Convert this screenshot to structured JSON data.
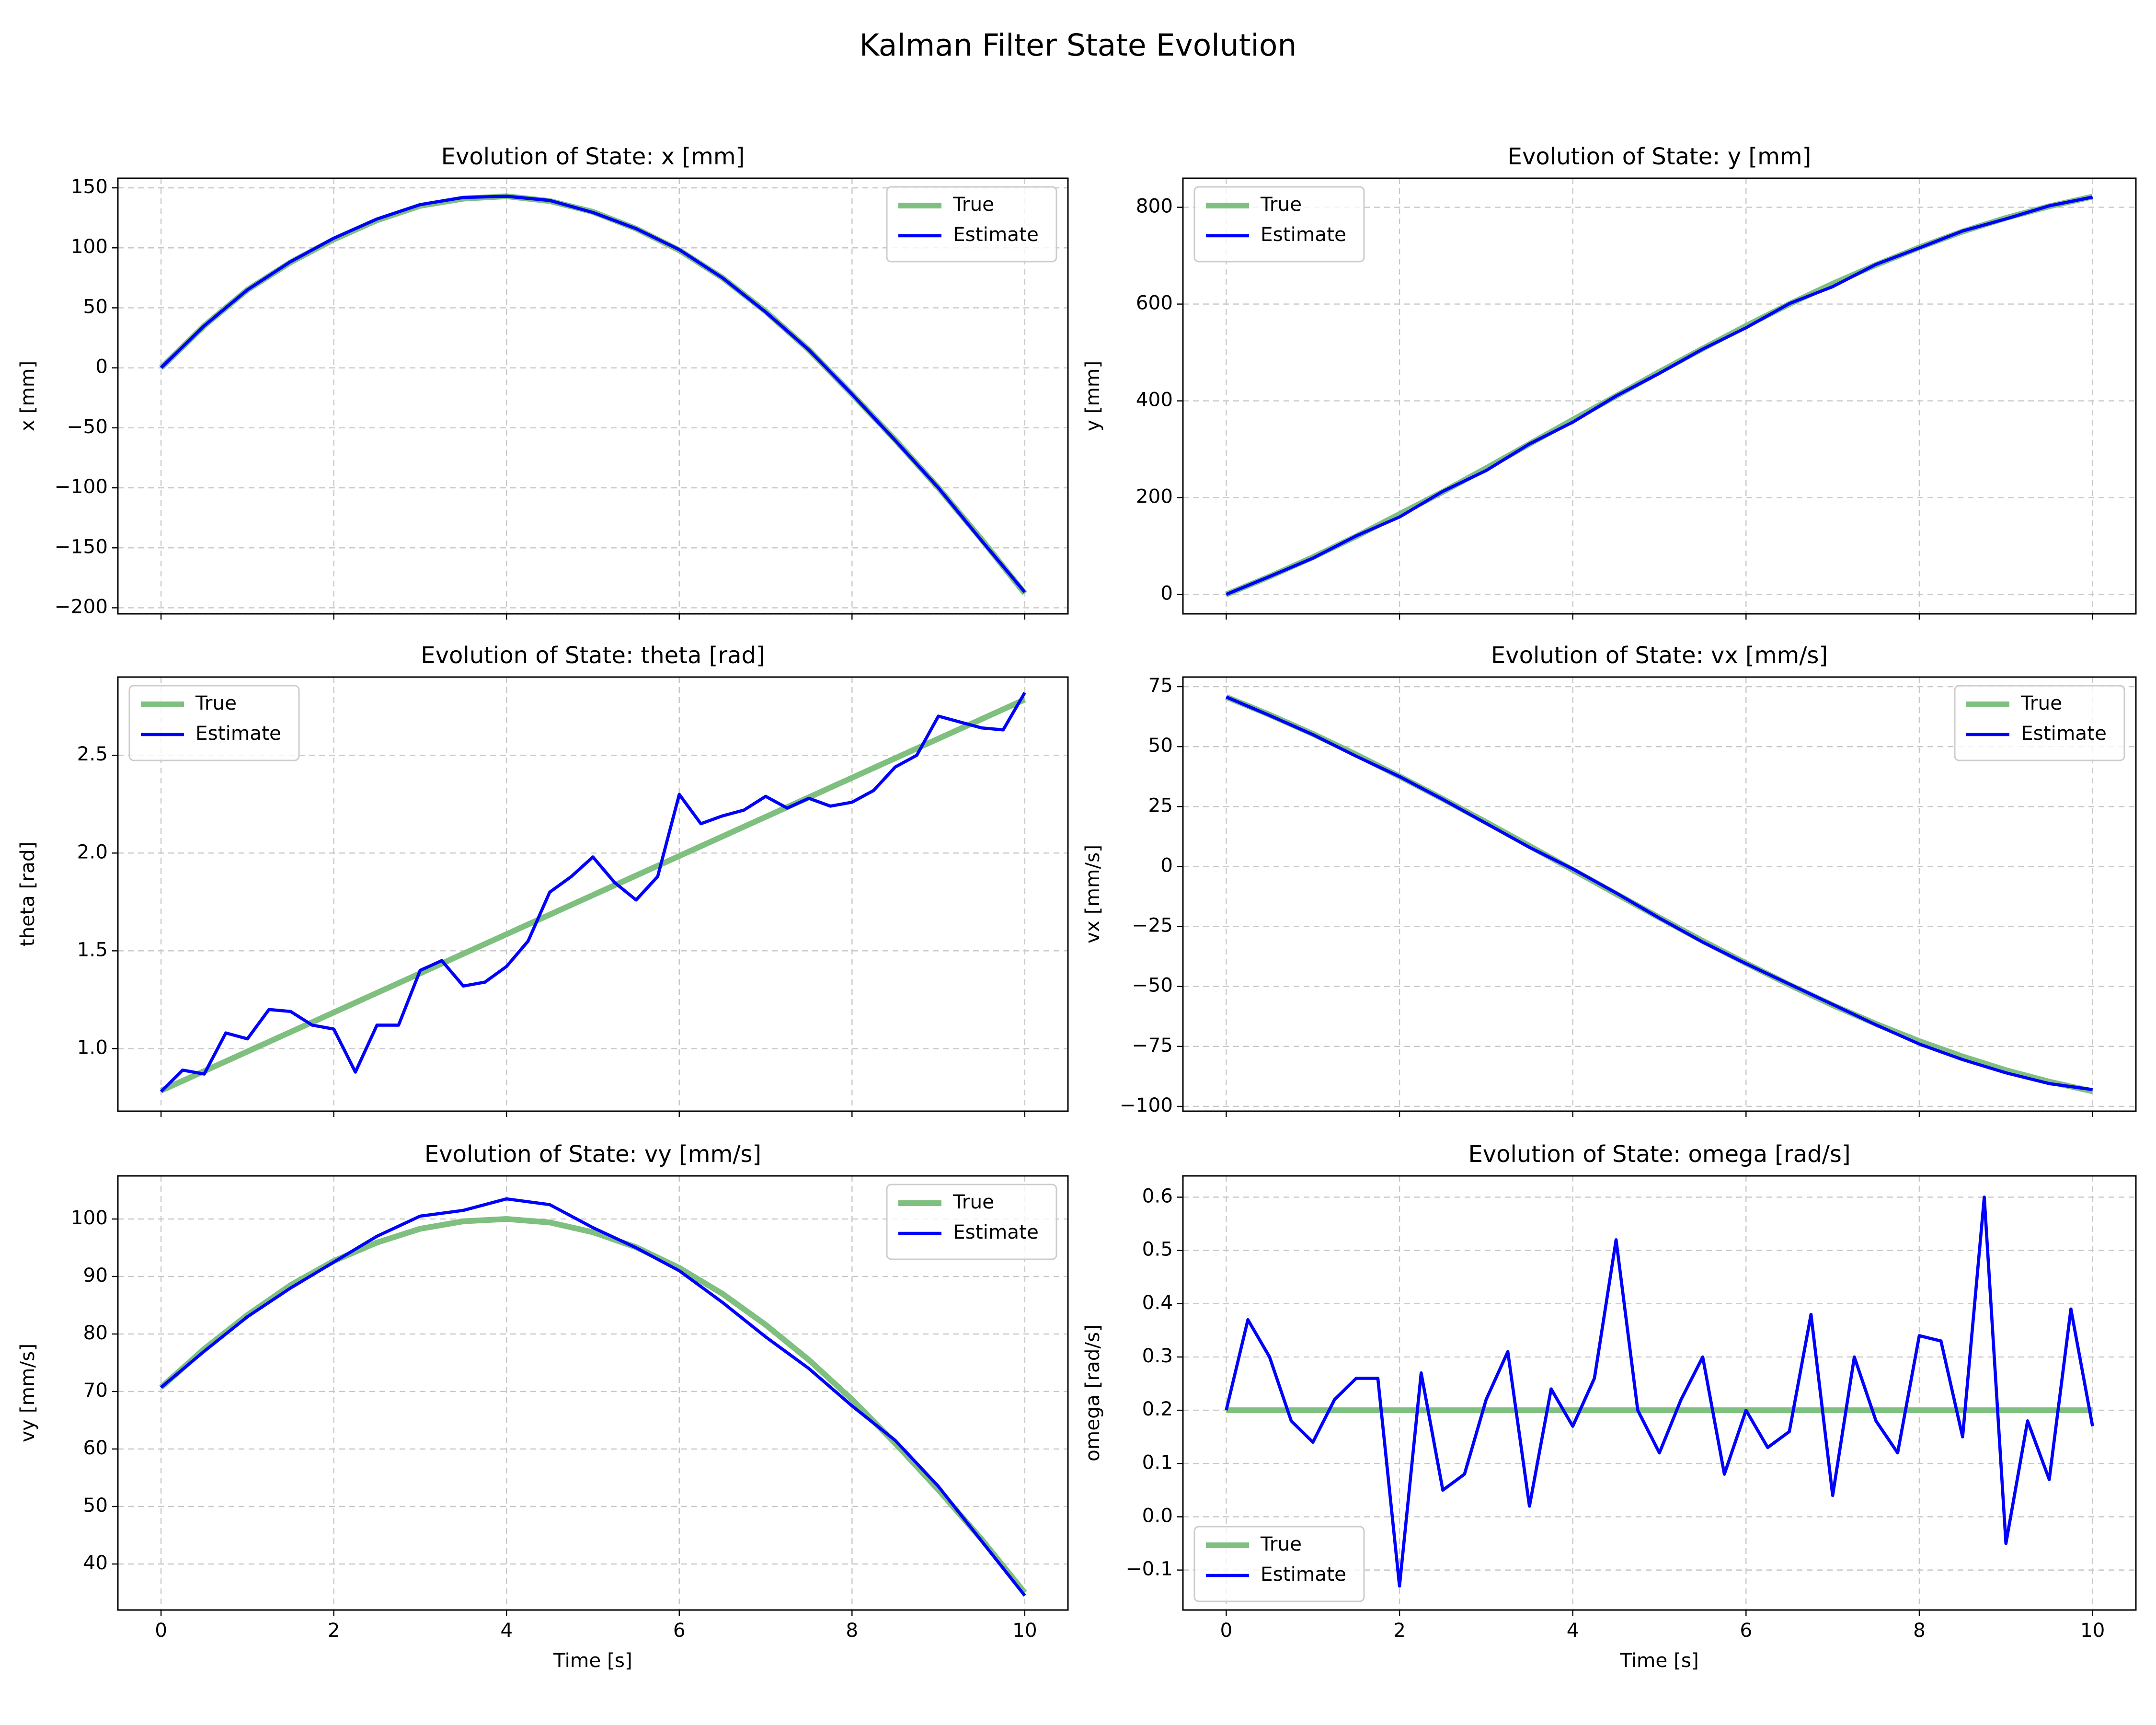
{
  "title": "Kalman Filter State Evolution",
  "chart_data": [
    {
      "type": "line",
      "title": "Evolution of State: x [mm]",
      "ylabel": "x [mm]",
      "legend": "upper right",
      "grid": true,
      "x": [
        0,
        0.5,
        1,
        1.5,
        2,
        2.5,
        3,
        3.5,
        4,
        4.5,
        5,
        5.5,
        6,
        6.5,
        7,
        7.5,
        8,
        8.5,
        9,
        9.5,
        10
      ],
      "xlim": [
        -0.5,
        10.5
      ],
      "xticks": [
        0,
        2,
        4,
        6,
        8,
        10
      ],
      "ylim": [
        -205,
        158
      ],
      "yticks": [
        {
          "value": -200,
          "label": "−200"
        },
        {
          "value": -150,
          "label": "−150"
        },
        {
          "value": -100,
          "label": "−100"
        },
        {
          "value": -50,
          "label": "−50"
        },
        0,
        50,
        100,
        150
      ],
      "series": [
        {
          "name": "True",
          "color": "#7fbf7f",
          "values": [
            0,
            35,
            65,
            88,
            107,
            123,
            135,
            141,
            143,
            139,
            130,
            116,
            98,
            75,
            47,
            15,
            -22,
            -60,
            -100,
            -143,
            -188
          ]
        },
        {
          "name": "Estimate",
          "color": "#0000ff",
          "values": [
            0,
            35,
            65,
            88.5,
            108,
            124,
            136,
            142,
            143,
            139.5,
            129.5,
            116,
            98.5,
            75,
            46.5,
            15,
            -22,
            -60.5,
            -100,
            -144,
            -187
          ]
        }
      ]
    },
    {
      "type": "line",
      "title": "Evolution of State: y [mm]",
      "ylabel": "y [mm]",
      "legend": "upper left",
      "grid": true,
      "x": [
        0,
        0.5,
        1,
        1.5,
        2,
        2.5,
        3,
        3.5,
        4,
        4.5,
        5,
        5.5,
        6,
        6.5,
        7,
        7.5,
        8,
        8.5,
        9,
        9.5,
        10
      ],
      "xlim": [
        -0.5,
        10.5
      ],
      "xticks": [
        0,
        2,
        4,
        6,
        8,
        10
      ],
      "ylim": [
        -40,
        860
      ],
      "yticks": [
        0,
        200,
        400,
        600,
        800
      ],
      "series": [
        {
          "name": "True",
          "color": "#7fbf7f",
          "values": [
            0,
            37,
            77,
            120,
            166,
            212,
            261,
            311,
            361,
            410,
            460,
            508,
            555,
            600,
            642,
            681,
            717,
            750,
            778,
            802,
            822
          ]
        },
        {
          "name": "Estimate",
          "color": "#0000ff",
          "values": [
            0,
            37,
            75,
            121,
            160,
            213,
            256,
            311,
            356,
            410,
            457,
            507,
            551,
            601,
            636,
            682,
            716,
            751,
            776,
            803,
            821
          ]
        }
      ]
    },
    {
      "type": "line",
      "title": "Evolution of State: theta [rad]",
      "ylabel": "theta [rad]",
      "legend": "upper left",
      "grid": true,
      "x": [
        0,
        0.25,
        0.5,
        0.75,
        1,
        1.25,
        1.5,
        1.75,
        2,
        2.25,
        2.5,
        2.75,
        3,
        3.25,
        3.5,
        3.75,
        4,
        4.25,
        4.5,
        4.75,
        5,
        5.25,
        5.5,
        5.75,
        6,
        6.25,
        6.5,
        6.75,
        7,
        7.25,
        7.5,
        7.75,
        8,
        8.25,
        8.5,
        8.75,
        9,
        9.25,
        9.5,
        9.75,
        10
      ],
      "xlim": [
        -0.5,
        10.5
      ],
      "xticks": [
        0,
        2,
        4,
        6,
        8,
        10
      ],
      "ylim": [
        0.68,
        2.9
      ],
      "yticks": [
        {
          "value": 1,
          "label": "1.0"
        },
        1.5,
        {
          "value": 2,
          "label": "2.0"
        },
        2.5
      ],
      "series": [
        {
          "name": "True",
          "color": "#7fbf7f",
          "values": [
            0.785,
            0.835,
            0.885,
            0.935,
            0.985,
            1.035,
            1.085,
            1.135,
            1.185,
            1.235,
            1.285,
            1.335,
            1.385,
            1.435,
            1.485,
            1.535,
            1.585,
            1.635,
            1.685,
            1.735,
            1.785,
            1.835,
            1.885,
            1.935,
            1.985,
            2.035,
            2.085,
            2.135,
            2.185,
            2.235,
            2.285,
            2.335,
            2.385,
            2.435,
            2.485,
            2.535,
            2.585,
            2.635,
            2.685,
            2.735,
            2.785
          ]
        },
        {
          "name": "Estimate",
          "color": "#0000ff",
          "values": [
            0.78,
            0.89,
            0.87,
            1.08,
            1.05,
            1.2,
            1.19,
            1.12,
            1.1,
            0.88,
            1.12,
            1.12,
            1.4,
            1.45,
            1.32,
            1.34,
            1.42,
            1.55,
            1.8,
            1.88,
            1.98,
            1.85,
            1.76,
            1.88,
            2.3,
            2.15,
            2.19,
            2.22,
            2.29,
            2.23,
            2.28,
            2.24,
            2.26,
            2.32,
            2.44,
            2.5,
            2.7,
            2.67,
            2.64,
            2.63,
            2.82
          ]
        }
      ]
    },
    {
      "type": "line",
      "title": "Evolution of State: vx [mm/s]",
      "ylabel": "vx [mm/s]",
      "legend": "upper right",
      "grid": true,
      "x": [
        0,
        0.5,
        1,
        1.5,
        2,
        2.5,
        3,
        3.5,
        4,
        4.5,
        5,
        5.5,
        6,
        6.5,
        7,
        7.5,
        8,
        8.5,
        9,
        9.5,
        10
      ],
      "xlim": [
        -0.5,
        10.5
      ],
      "xticks": [
        0,
        2,
        4,
        6,
        8,
        10
      ],
      "ylim": [
        -102,
        79
      ],
      "yticks": [
        {
          "value": -100,
          "label": "−100"
        },
        {
          "value": -75,
          "label": "−75"
        },
        {
          "value": -50,
          "label": "−50"
        },
        {
          "value": -25,
          "label": "−25"
        },
        0,
        25,
        50,
        75
      ],
      "series": [
        {
          "name": "True",
          "color": "#7fbf7f",
          "values": [
            70.7,
            63.3,
            55.3,
            46.7,
            37.6,
            28.2,
            18.5,
            8.6,
            -1.4,
            -11.4,
            -21.3,
            -31,
            -40.3,
            -49.3,
            -57.8,
            -65.6,
            -72.8,
            -79.2,
            -84.9,
            -89.7,
            -93.7
          ]
        },
        {
          "name": "Estimate",
          "color": "#0000ff",
          "values": [
            70.7,
            63,
            55,
            46,
            37.5,
            28,
            18,
            8,
            -1,
            -11,
            -21.5,
            -31.5,
            -40.5,
            -49,
            -57.5,
            -66,
            -74,
            -80.5,
            -86,
            -90.5,
            -93
          ]
        }
      ]
    },
    {
      "type": "line",
      "title": "Evolution of State: vy [mm/s]",
      "ylabel": "vy [mm/s]",
      "xlabel": "Time [s]",
      "legend": "upper right",
      "grid": true,
      "x": [
        0,
        0.5,
        1,
        1.5,
        2,
        2.5,
        3,
        3.5,
        4,
        4.5,
        5,
        5.5,
        6,
        6.5,
        7,
        7.5,
        8,
        8.5,
        9,
        9.5,
        10
      ],
      "xlim": [
        -0.5,
        10.5
      ],
      "xticks": [
        0,
        2,
        4,
        6,
        8,
        10
      ],
      "ylim": [
        32,
        107.5
      ],
      "yticks": [
        40,
        50,
        60,
        70,
        80,
        90,
        100
      ],
      "series": [
        {
          "name": "True",
          "color": "#7fbf7f",
          "values": [
            70.7,
            77.4,
            83.3,
            88.5,
            92.7,
            95.9,
            98.3,
            99.6,
            100,
            99.4,
            97.7,
            95.1,
            91.5,
            87,
            81.6,
            75.5,
            68.6,
            61,
            52.9,
            44.3,
            35
          ]
        },
        {
          "name": "Estimate",
          "color": "#0000ff",
          "values": [
            70.7,
            77,
            83,
            88,
            92.5,
            97,
            100.5,
            101.5,
            103.5,
            102.5,
            98.5,
            95,
            91,
            85.5,
            79.5,
            74,
            67.5,
            61.5,
            53.5,
            44,
            34.5
          ]
        }
      ]
    },
    {
      "type": "line",
      "title": "Evolution of State: omega [rad/s]",
      "ylabel": "omega [rad/s]",
      "xlabel": "Time [s]",
      "legend": "lower left",
      "grid": true,
      "x": [
        0,
        0.25,
        0.5,
        0.75,
        1,
        1.25,
        1.5,
        1.75,
        2,
        2.25,
        2.5,
        2.75,
        3,
        3.25,
        3.5,
        3.75,
        4,
        4.25,
        4.5,
        4.75,
        5,
        5.25,
        5.5,
        5.75,
        6,
        6.25,
        6.5,
        6.75,
        7,
        7.25,
        7.5,
        7.75,
        8,
        8.25,
        8.5,
        8.75,
        9,
        9.25,
        9.5,
        9.75,
        10
      ],
      "xlim": [
        -0.5,
        10.5
      ],
      "xticks": [
        0,
        2,
        4,
        6,
        8,
        10
      ],
      "ylim": [
        -0.175,
        0.64
      ],
      "yticks": [
        {
          "value": -0.1,
          "label": "−0.1"
        },
        {
          "value": 0,
          "label": "0.0"
        },
        0.1,
        0.2,
        0.3,
        0.4,
        0.5,
        0.6
      ],
      "series": [
        {
          "name": "True",
          "color": "#7fbf7f",
          "values": [
            0.2,
            0.2,
            0.2,
            0.2,
            0.2,
            0.2,
            0.2,
            0.2,
            0.2,
            0.2,
            0.2,
            0.2,
            0.2,
            0.2,
            0.2,
            0.2,
            0.2,
            0.2,
            0.2,
            0.2,
            0.2,
            0.2,
            0.2,
            0.2,
            0.2,
            0.2,
            0.2,
            0.2,
            0.2,
            0.2,
            0.2,
            0.2,
            0.2,
            0.2,
            0.2,
            0.2,
            0.2,
            0.2,
            0.2,
            0.2,
            0.2
          ]
        },
        {
          "name": "Estimate",
          "color": "#0000ff",
          "values": [
            0.2,
            0.37,
            0.3,
            0.18,
            0.14,
            0.22,
            0.26,
            0.26,
            -0.13,
            0.27,
            0.05,
            0.08,
            0.22,
            0.31,
            0.02,
            0.24,
            0.17,
            0.26,
            0.52,
            0.2,
            0.12,
            0.22,
            0.3,
            0.08,
            0.2,
            0.13,
            0.16,
            0.38,
            0.04,
            0.3,
            0.18,
            0.12,
            0.34,
            0.33,
            0.15,
            0.6,
            -0.05,
            0.18,
            0.07,
            0.39,
            0.17
          ]
        }
      ]
    }
  ]
}
